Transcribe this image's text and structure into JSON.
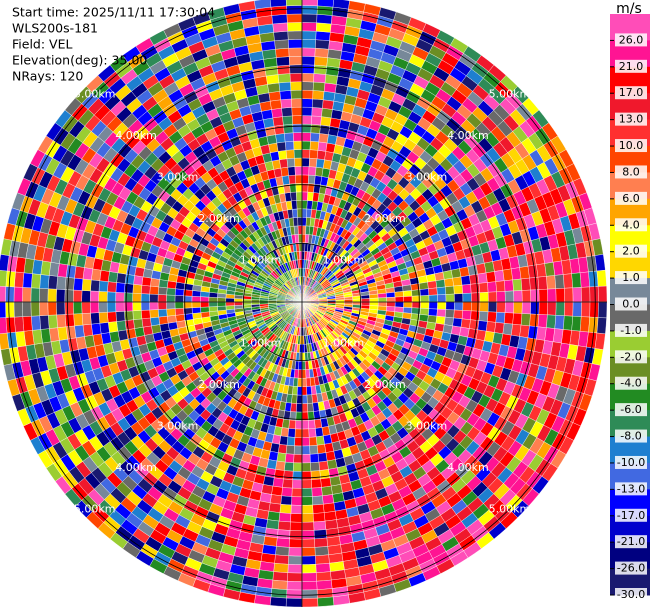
{
  "chart_data": {
    "type": "ppi",
    "header": [
      "Start time: 2025/11/11 17:30:04",
      "WLS200s-181",
      "Field: VEL",
      "Elevation(deg): 35.00",
      "NRays: 120"
    ],
    "rlim": [
      0,
      5.2
    ],
    "rticks": [
      {
        "value": 1,
        "label": "1.00km"
      },
      {
        "value": 2,
        "label": "2.00km"
      },
      {
        "value": 3,
        "label": "3.00km"
      },
      {
        "value": 4,
        "label": "4.00km"
      },
      {
        "value": 5,
        "label": "5.00km"
      }
    ],
    "colorbar": {
      "title": "m/s",
      "ticks": [
        {
          "value": 26,
          "label": "26.0"
        },
        {
          "value": 21,
          "label": "21.0"
        },
        {
          "value": 17,
          "label": "17.0"
        },
        {
          "value": 13,
          "label": "13.0"
        },
        {
          "value": 10,
          "label": "10.0"
        },
        {
          "value": 8,
          "label": "8.0"
        },
        {
          "value": 6,
          "label": "6.0"
        },
        {
          "value": 4,
          "label": "4.0"
        },
        {
          "value": 2,
          "label": "2.0"
        },
        {
          "value": 1,
          "label": "1.0"
        },
        {
          "value": 0,
          "label": "0.0"
        },
        {
          "value": -1,
          "label": "-1.0"
        },
        {
          "value": -2,
          "label": "-2.0"
        },
        {
          "value": -4,
          "label": "-4.0"
        },
        {
          "value": -6,
          "label": "-6.0"
        },
        {
          "value": -8,
          "label": "-8.0"
        },
        {
          "value": -10,
          "label": "-10.0"
        },
        {
          "value": -13,
          "label": "-13.0"
        },
        {
          "value": -17,
          "label": "-17.0"
        },
        {
          "value": -21,
          "label": "-21.0"
        },
        {
          "value": -26,
          "label": "-26.0"
        },
        {
          "value": -30,
          "label": "-30.0"
        }
      ],
      "colors": [
        "#ff4db8",
        "#ff1493",
        "#ff0000",
        "#f0182c",
        "#ff3030",
        "#ff4500",
        "#ff7f50",
        "#ffa500",
        "#ffff00",
        "#ffd700",
        "#778899",
        "#696969",
        "#9acd32",
        "#6b8e23",
        "#228b22",
        "#2e8b57",
        "#1e7fd0",
        "#4169e1",
        "#0000ff",
        "#0000cd",
        "#000080",
        "#191970"
      ]
    }
  }
}
